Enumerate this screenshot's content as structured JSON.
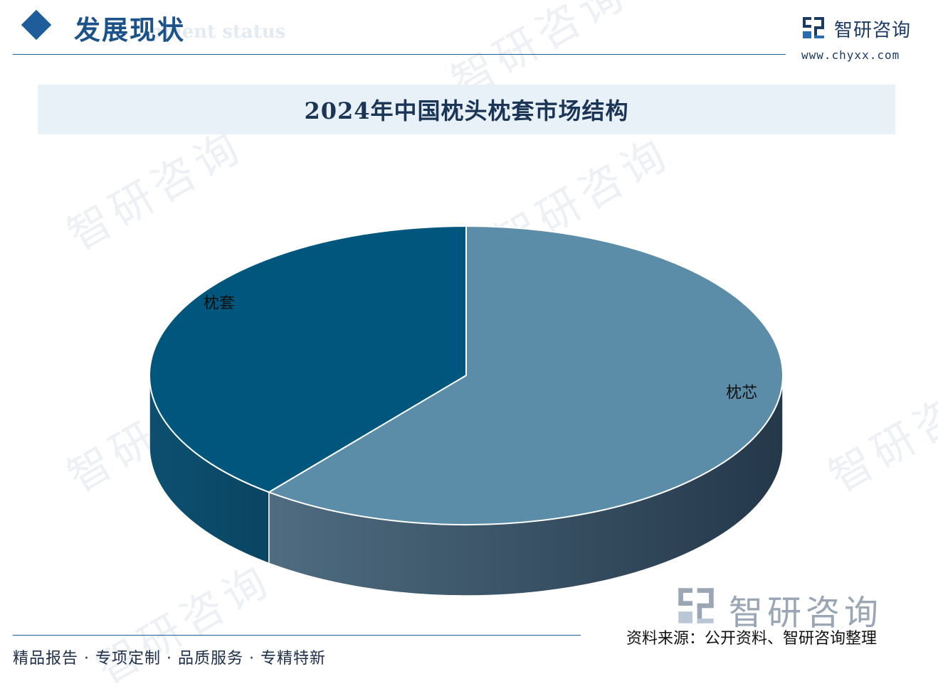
{
  "header": {
    "title": "发展现状",
    "subtitle": "pment status",
    "icon": "diamond-icon",
    "accent_color": "#1f5d9a"
  },
  "brand": {
    "name": "智研咨询",
    "url": "www.chyxx.com",
    "icon": "logo-icon"
  },
  "watermark": {
    "text": "智研咨询"
  },
  "chart_data": {
    "type": "pie",
    "style": "3d",
    "title": "2024年中国枕头枕套市场结构",
    "slices": [
      {
        "label": "枕芯",
        "value": 60.7,
        "color": "#5b8ca8"
      },
      {
        "label": "枕套",
        "value": 39.3,
        "color": "#00567c"
      }
    ],
    "legend": "none",
    "value_labels_shown": false
  },
  "footer": {
    "slogan": "精品报告 · 专项定制 · 品质服务 · 专精特新",
    "brand_name": "智研咨询",
    "source": "资料来源：公开资料、智研咨询整理"
  }
}
